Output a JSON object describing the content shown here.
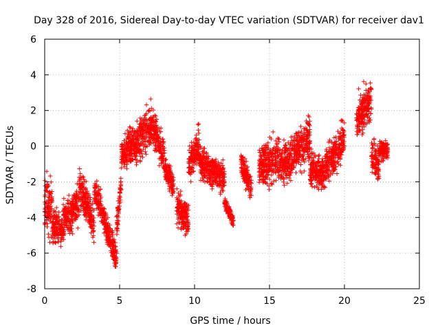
{
  "chart_data": {
    "type": "scatter",
    "title": "Day 328 of 2016, Sidereal Day-to-day VTEC variation (SDTVAR) for receiver dav1",
    "xlabel": "GPS time / hours",
    "ylabel": "SDTVAR / TECUs",
    "xlim": [
      0,
      25
    ],
    "ylim": [
      -8,
      6
    ],
    "xticks": [
      0,
      5,
      10,
      15,
      20,
      25
    ],
    "yticks": [
      -8,
      -6,
      -4,
      -2,
      0,
      2,
      4,
      6
    ],
    "grid": true,
    "marker": "+",
    "series": [
      {
        "name": "SDTVAR",
        "color": "#ff0000",
        "segments": [
          {
            "x0": 0.0,
            "x1": 0.5,
            "center": [
              -3.5,
              -3.0
            ],
            "spread": 2.6
          },
          {
            "x0": 0.5,
            "x1": 1.2,
            "center": [
              -4.5,
              -4.8
            ],
            "spread": 1.3
          },
          {
            "x0": 1.2,
            "x1": 2.3,
            "center": [
              -4.2,
              -3.2
            ],
            "spread": 1.6
          },
          {
            "x0": 2.3,
            "x1": 3.3,
            "center": [
              -2.0,
              -4.6
            ],
            "spread": 1.5
          },
          {
            "x0": 3.3,
            "x1": 4.1,
            "center": [
              -2.4,
              -4.4
            ],
            "spread": 1.2
          },
          {
            "x0": 4.1,
            "x1": 4.8,
            "center": [
              -4.5,
              -6.3
            ],
            "spread": 1.1
          },
          {
            "x0": 4.8,
            "x1": 5.1,
            "center": [
              -4.5,
              -2.0
            ],
            "spread": 1.3
          },
          {
            "x0": 5.1,
            "x1": 6.3,
            "center": [
              -0.6,
              0.4
            ],
            "spread": 1.5
          },
          {
            "x0": 6.3,
            "x1": 7.1,
            "center": [
              0.4,
              1.2
            ],
            "spread": 1.8
          },
          {
            "x0": 7.1,
            "x1": 8.0,
            "center": [
              1.3,
              -0.6
            ],
            "spread": 1.4
          },
          {
            "x0": 8.0,
            "x1": 8.6,
            "center": [
              -1.2,
              -2.2
            ],
            "spread": 1.0
          },
          {
            "x0": 8.8,
            "x1": 9.6,
            "center": [
              -3.5,
              -4.2
            ],
            "spread": 1.4
          },
          {
            "x0": 9.6,
            "x1": 10.3,
            "center": [
              -1.2,
              0.2
            ],
            "spread": 1.4
          },
          {
            "x0": 10.3,
            "x1": 11.2,
            "center": [
              -0.8,
              -1.5
            ],
            "spread": 1.3
          },
          {
            "x0": 11.2,
            "x1": 12.0,
            "center": [
              -1.4,
              -1.8
            ],
            "spread": 1.2
          },
          {
            "x0": 12.0,
            "x1": 12.6,
            "center": [
              -3.2,
              -4.2
            ],
            "spread": 0.5
          },
          {
            "x0": 13.1,
            "x1": 13.8,
            "center": [
              -1.0,
              -2.4
            ],
            "spread": 1.0
          },
          {
            "x0": 14.3,
            "x1": 15.6,
            "center": [
              -1.2,
              -0.6
            ],
            "spread": 1.8
          },
          {
            "x0": 15.6,
            "x1": 16.4,
            "center": [
              -1.0,
              -0.8
            ],
            "spread": 1.6
          },
          {
            "x0": 16.4,
            "x1": 17.7,
            "center": [
              -0.6,
              0.4
            ],
            "spread": 1.6
          },
          {
            "x0": 17.7,
            "x1": 18.7,
            "center": [
              -1.3,
              -1.6
            ],
            "spread": 1.4
          },
          {
            "x0": 18.7,
            "x1": 20.0,
            "center": [
              -1.2,
              0.4
            ],
            "spread": 1.6
          },
          {
            "x0": 20.8,
            "x1": 21.8,
            "center": [
              1.4,
              2.6
            ],
            "spread": 1.7
          },
          {
            "x0": 21.8,
            "x1": 22.3,
            "center": [
              -0.4,
              -1.0
            ],
            "spread": 1.4
          },
          {
            "x0": 22.3,
            "x1": 22.9,
            "center": [
              -0.3,
              -0.1
            ],
            "spread": 0.8
          }
        ]
      }
    ]
  }
}
